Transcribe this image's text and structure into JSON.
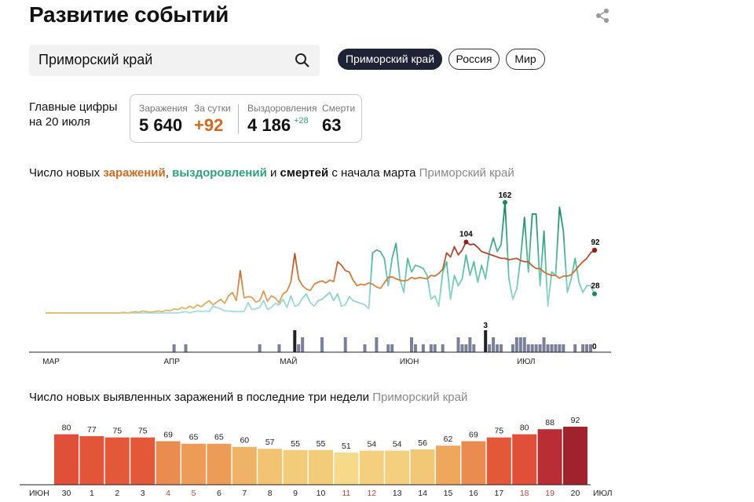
{
  "header": {
    "title": "Развитие событий",
    "share_icon": "share-icon"
  },
  "search": {
    "value": "Приморский край",
    "icon": "search-icon"
  },
  "regions": [
    {
      "label": "Приморский край",
      "active": true
    },
    {
      "label": "Россия",
      "active": false
    },
    {
      "label": "Мир",
      "active": false
    }
  ],
  "summary": {
    "label_line1": "Главные цифры",
    "label_line2": "на 20 июля",
    "infections_label": "Заражения",
    "infections_value": "5 640",
    "daily_label": "За сутки",
    "daily_value": "+92",
    "recoveries_label": "Выздоровления",
    "recoveries_value": "4 186",
    "recoveries_delta": "+28",
    "deaths_label": "Смерти",
    "deaths_value": "63"
  },
  "colors": {
    "infections": "#d2691e",
    "recoveries": "#2aa57a",
    "deaths_bar": "#7a7f9a",
    "deaths_highlight": "#222222",
    "active_pill": "#1e2235"
  },
  "chart_data": [
    {
      "type": "line",
      "title": {
        "prefix": "Число новых ",
        "infections": "заражений",
        "sep": ", ",
        "recoveries": "выздоровлений",
        "and": " и ",
        "deaths": "смертей",
        "suffix": " с начала марта ",
        "region": "Приморский край"
      },
      "x_start": "1 марта",
      "x_end": "20 июля",
      "month_ticks": [
        {
          "label": "МАР",
          "day": 0
        },
        {
          "label": "АПР",
          "day": 31
        },
        {
          "label": "МАЙ",
          "day": 61
        },
        {
          "label": "ИЮН",
          "day": 92
        },
        {
          "label": "ИЮЛ",
          "day": 122
        }
      ],
      "series": [
        {
          "name": "заражения",
          "values": [
            0,
            0,
            0,
            0,
            0,
            0,
            0,
            0,
            0,
            0,
            0,
            0,
            0,
            0,
            0,
            0,
            0,
            0,
            0,
            0,
            1,
            0,
            1,
            2,
            1,
            3,
            2,
            1,
            2,
            3,
            2,
            4,
            3,
            6,
            5,
            8,
            6,
            10,
            7,
            12,
            9,
            14,
            18,
            12,
            16,
            20,
            14,
            25,
            30,
            18,
            62,
            22,
            24,
            23,
            16,
            18,
            32,
            17,
            25,
            22,
            15,
            28,
            32,
            45,
            87,
            50,
            40,
            35,
            33,
            42,
            45,
            47,
            44,
            48,
            46,
            75,
            70,
            62,
            60,
            48,
            40,
            42,
            41,
            44,
            42,
            38,
            36,
            44,
            52,
            53,
            50,
            48,
            47,
            48,
            52,
            50,
            52,
            51,
            50,
            55,
            54,
            58,
            64,
            88,
            82,
            97,
            85,
            92,
            104,
            100,
            101,
            96,
            90,
            88,
            86,
            84,
            82,
            80,
            80,
            78,
            79,
            80,
            77,
            75,
            75,
            69,
            65,
            65,
            60,
            57,
            55,
            55,
            51,
            54,
            54,
            56,
            62,
            69,
            75,
            80,
            88,
            92
          ]
        },
        {
          "name": "выздоровления",
          "values": [
            0,
            0,
            0,
            0,
            0,
            0,
            0,
            0,
            0,
            0,
            0,
            0,
            0,
            0,
            0,
            0,
            0,
            0,
            0,
            0,
            0,
            0,
            0,
            0,
            0,
            0,
            0,
            0,
            0,
            0,
            0,
            0,
            0,
            0,
            0,
            1,
            2,
            0,
            2,
            3,
            2,
            3,
            2,
            10,
            8,
            6,
            3,
            3,
            2,
            2,
            2,
            2,
            15,
            5,
            6,
            8,
            18,
            5,
            8,
            14,
            12,
            20,
            8,
            25,
            10,
            12,
            22,
            28,
            15,
            10,
            18,
            20,
            25,
            30,
            18,
            28,
            10,
            12,
            24,
            18,
            16,
            14,
            12,
            6,
            88,
            92,
            90,
            80,
            40,
            80,
            102,
            50,
            30,
            80,
            60,
            70,
            68,
            65,
            55,
            20,
            25,
            10,
            60,
            75,
            20,
            55,
            40,
            50,
            85,
            55,
            75,
            45,
            70,
            50,
            90,
            110,
            90,
            100,
            162,
            50,
            20,
            35,
            80,
            140,
            60,
            145,
            145,
            40,
            120,
            10,
            60,
            55,
            155,
            120,
            30,
            50,
            80,
            45,
            30,
            40,
            40,
            28
          ]
        }
      ],
      "deaths_nonzero": [
        [
          33,
          1
        ],
        [
          36,
          1
        ],
        [
          55,
          1
        ],
        [
          60,
          1
        ],
        [
          64,
          3
        ],
        [
          65,
          1
        ],
        [
          66,
          2
        ],
        [
          71,
          2
        ],
        [
          77,
          2
        ],
        [
          82,
          1
        ],
        [
          85,
          2
        ],
        [
          88,
          1
        ],
        [
          89,
          1
        ],
        [
          94,
          2
        ],
        [
          95,
          1
        ],
        [
          97,
          1
        ],
        [
          99,
          1
        ],
        [
          100,
          1
        ],
        [
          102,
          1
        ],
        [
          106,
          2
        ],
        [
          107,
          1
        ],
        [
          108,
          1
        ],
        [
          109,
          2
        ],
        [
          110,
          1
        ],
        [
          113,
          3
        ],
        [
          114,
          1
        ],
        [
          115,
          2
        ],
        [
          116,
          1
        ],
        [
          117,
          1
        ],
        [
          120,
          1
        ],
        [
          121,
          2
        ],
        [
          122,
          2
        ],
        [
          123,
          2
        ],
        [
          124,
          1
        ],
        [
          125,
          1
        ],
        [
          126,
          1
        ],
        [
          127,
          1
        ],
        [
          128,
          2
        ],
        [
          129,
          1
        ],
        [
          130,
          1
        ],
        [
          131,
          1
        ],
        [
          132,
          1
        ],
        [
          133,
          1
        ],
        [
          136,
          1
        ],
        [
          138,
          1
        ],
        [
          139,
          1
        ],
        [
          140,
          1
        ]
      ],
      "annotations": {
        "recoveries_peak": "162",
        "infections_peak": "104",
        "infections_last": "92",
        "recoveries_last": "28",
        "deaths_peak": "3",
        "deaths_last": "0"
      },
      "ylim": [
        0,
        162
      ]
    },
    {
      "type": "bar",
      "title": "Число новых выявленных заражений в последние три недели",
      "region": "Приморский край",
      "axis_start": "ИЮН",
      "axis_end": "ИЮЛ",
      "categories": [
        "30",
        "1",
        "2",
        "3",
        "4",
        "5",
        "6",
        "7",
        "8",
        "9",
        "10",
        "11",
        "12",
        "13",
        "14",
        "15",
        "16",
        "17",
        "18",
        "19",
        "20"
      ],
      "weekend": [
        false,
        false,
        false,
        false,
        true,
        true,
        false,
        false,
        false,
        false,
        false,
        true,
        true,
        false,
        false,
        false,
        false,
        false,
        true,
        true,
        false
      ],
      "values": [
        80,
        77,
        75,
        75,
        69,
        65,
        65,
        60,
        57,
        55,
        55,
        51,
        54,
        54,
        56,
        62,
        69,
        75,
        80,
        88,
        92
      ],
      "ylim": [
        0,
        92
      ]
    }
  ]
}
